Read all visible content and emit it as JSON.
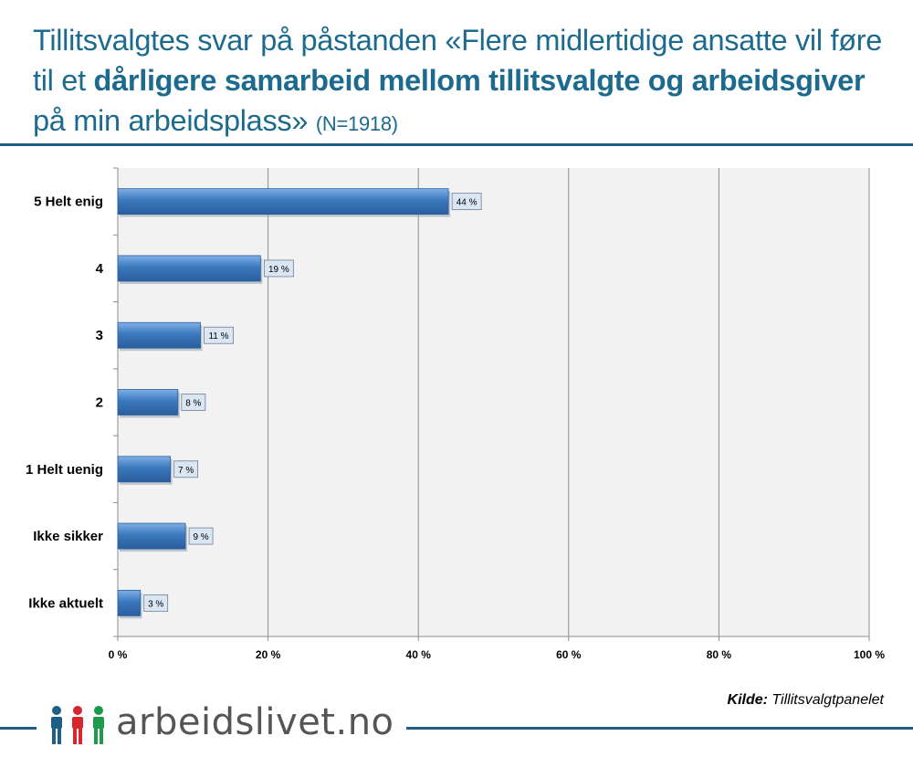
{
  "header": {
    "title_part1": "Tillitsvalgtes svar på påstanden «Flere midlertidige ansatte vil føre til et ",
    "title_bold": "dårligere samarbeid mellom tillitsvalgte og arbeidsgiver",
    "title_part2": " på min arbeidsplass» ",
    "title_n": "(N=1918)"
  },
  "source": {
    "label": "Kilde:",
    "text": " Tillitsvalgtpanelet"
  },
  "footer": {
    "logo_text": "arbeidslivet.no",
    "logo_icon": "people-icon",
    "colors": [
      "#1d5f86",
      "#d9262e",
      "#1d9a4a"
    ]
  },
  "chart_data": {
    "type": "bar",
    "orientation": "horizontal",
    "categories": [
      "5 Helt enig",
      "4",
      "3",
      "2",
      "1 Helt uenig",
      "Ikke sikker",
      "Ikke aktuelt"
    ],
    "values": [
      44,
      19,
      11,
      8,
      7,
      9,
      3
    ],
    "data_labels": [
      "44 %",
      "19 %",
      "11 %",
      "8 %",
      "7 %",
      "9 %",
      "3 %"
    ],
    "x_ticks": [
      "0 %",
      "20 %",
      "40 %",
      "60 %",
      "80 %",
      "100 %"
    ],
    "xlim": [
      0,
      100
    ],
    "bar_color": "#3b78bd",
    "plot_background": "#f2f2f2",
    "grid": true
  }
}
